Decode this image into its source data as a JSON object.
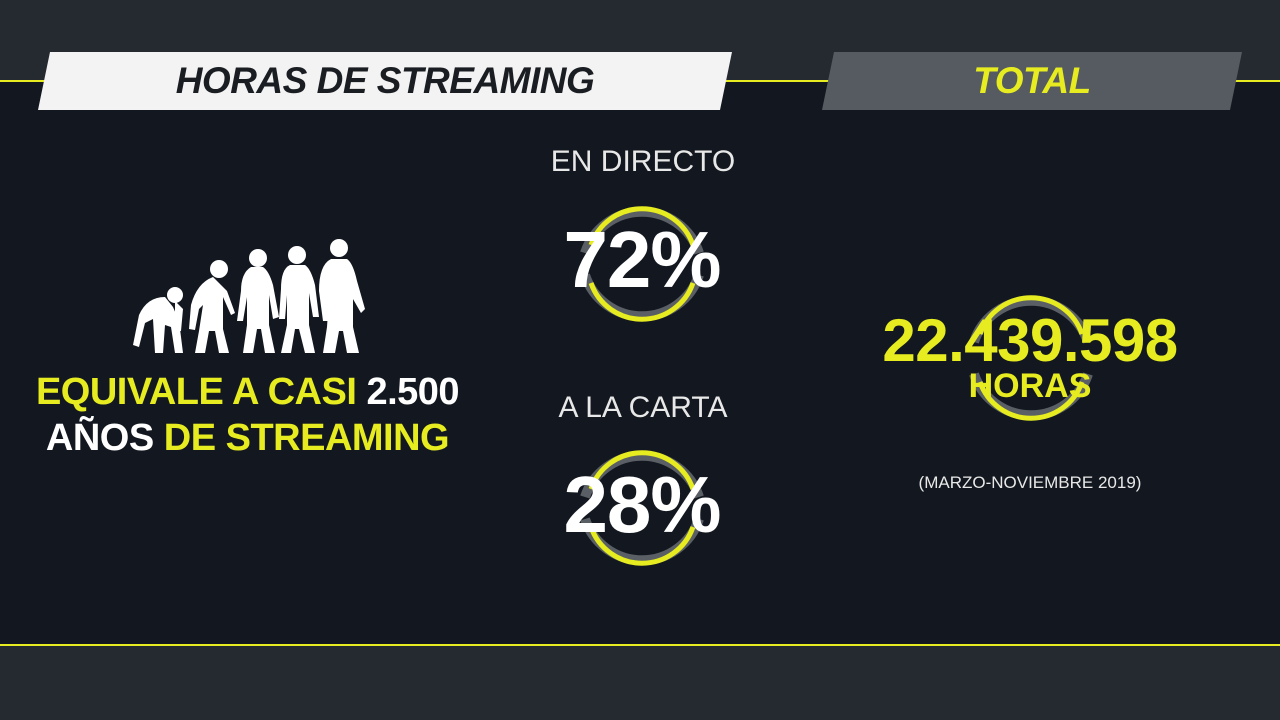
{
  "header": {
    "left_title": "HORAS DE STREAMING",
    "right_title": "TOTAL"
  },
  "left": {
    "line1_yellow": "EQUIVALE A CASI ",
    "line1_white": "2.500",
    "line2_white": "AÑOS ",
    "line2_yellow": "DE STREAMING",
    "illustration": "evolution-of-man-silhouettes"
  },
  "middle": {
    "live_label": "EN DIRECTO",
    "live_percent": "72%",
    "vod_label": "A LA CARTA",
    "vod_percent": "28%"
  },
  "right": {
    "total_hours": "22.439.598",
    "unit": "HORAS",
    "period": "(MARZO-NOVIEMBRE 2019)"
  },
  "colors": {
    "accent": "#e6ec1f",
    "background": "#131820",
    "frame": "#252a31",
    "ring_gray": "#5a5f65"
  }
}
